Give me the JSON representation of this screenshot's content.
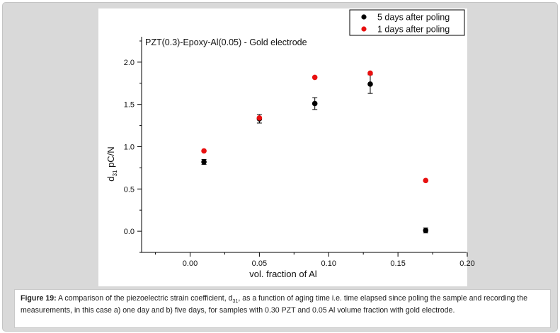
{
  "figure": {
    "caption_label": "Figure 19:",
    "caption_pre": " A comparison of the piezoelectric strain coefficient, d",
    "caption_sub": "31",
    "caption_post": ", as a function of aging time i.e. time elapsed since poling the sample and recording the measurements, in this case a) one day and b) five days, for samples with 0.30 PZT and 0.05 Al volume fraction with gold electrode."
  },
  "chart_data": {
    "type": "scatter",
    "title": "PZT(0.3)-Epoxy-Al(0.05) - Gold electrode",
    "xlabel": "vol. fraction of Al",
    "ylabel_main": "d",
    "ylabel_sub": "31",
    "ylabel_unit": " pC/N",
    "xlim": [
      -0.035,
      0.2
    ],
    "ylim": [
      -0.25,
      2.3
    ],
    "xticks": [
      0.0,
      0.05,
      0.1,
      0.15,
      0.2
    ],
    "xtick_labels": [
      "0.00",
      "0.05",
      "0.10",
      "0.15",
      "0.20"
    ],
    "yticks": [
      0.0,
      0.5,
      1.0,
      1.5,
      2.0
    ],
    "ytick_labels": [
      "0.0",
      "0.5",
      "1.0",
      "1.5",
      "2.0"
    ],
    "grid": false,
    "legend_position": "top-right",
    "series": [
      {
        "name": "5 days after poling",
        "color": "#000000",
        "x": [
          0.01,
          0.05,
          0.09,
          0.13,
          0.17
        ],
        "y": [
          0.82,
          1.33,
          1.51,
          1.74,
          0.01
        ],
        "yerr": [
          0.03,
          0.05,
          0.07,
          0.11,
          0.03
        ]
      },
      {
        "name": "1 days after poling",
        "color": "#e81010",
        "x": [
          0.01,
          0.05,
          0.09,
          0.13,
          0.17
        ],
        "y": [
          0.95,
          1.34,
          1.82,
          1.87,
          0.6
        ],
        "yerr": [
          0,
          0,
          0,
          0,
          0
        ]
      }
    ]
  }
}
